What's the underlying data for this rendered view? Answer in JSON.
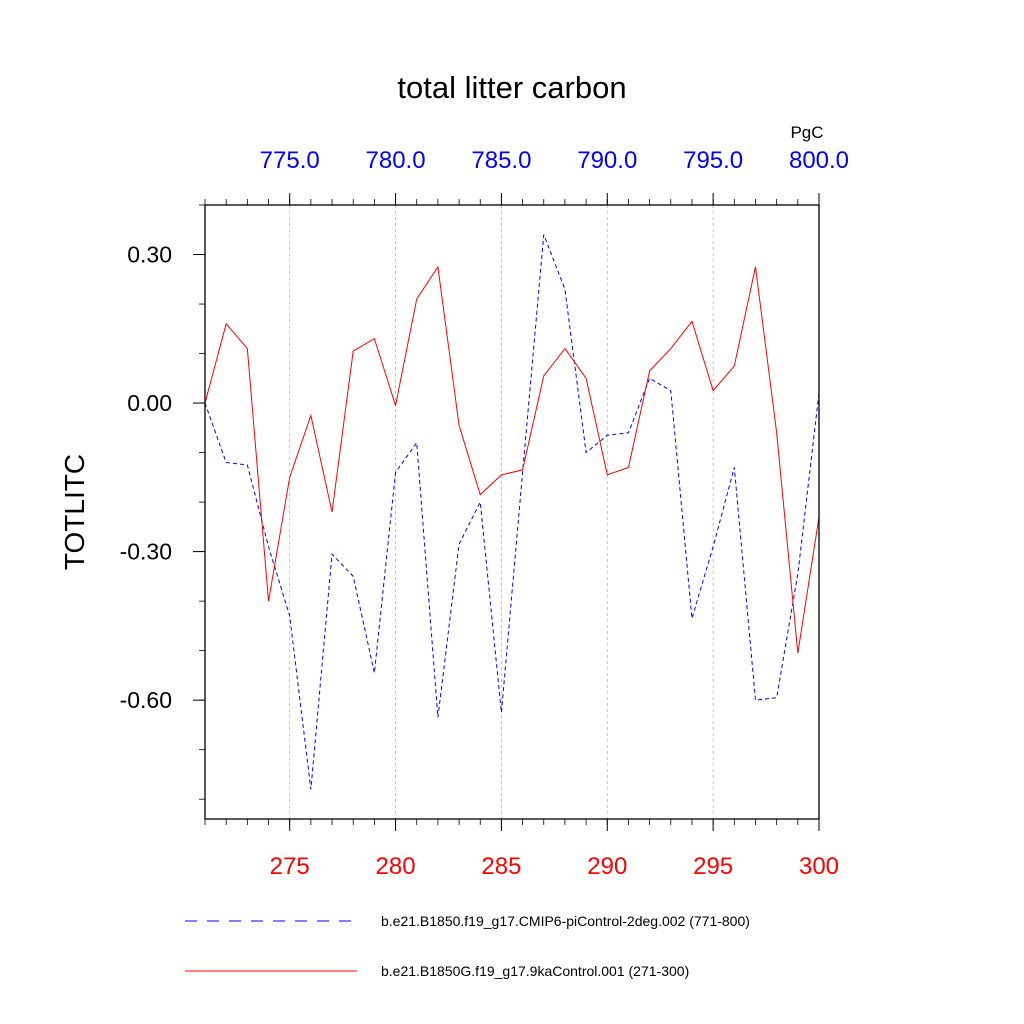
{
  "chart_data": {
    "type": "line",
    "title": "total litter carbon",
    "units": "PgC",
    "ylabel": "TOTLITC",
    "ylim": [
      -0.84,
      0.4
    ],
    "yticks": [
      {
        "value": 0.3,
        "label": "0.30"
      },
      {
        "value": 0.0,
        "label": "0.00"
      },
      {
        "value": -0.3,
        "label": "-0.30"
      },
      {
        "value": -0.6,
        "label": "-0.60"
      }
    ],
    "y_minor_step": 0.1,
    "xlim": [
      271,
      300
    ],
    "bottom_axis": {
      "color": "#ff0000",
      "ticks": [
        {
          "value": 275,
          "label": "275"
        },
        {
          "value": 280,
          "label": "280"
        },
        {
          "value": 285,
          "label": "285"
        },
        {
          "value": 290,
          "label": "290"
        },
        {
          "value": 295,
          "label": "295"
        },
        {
          "value": 300,
          "label": "300"
        }
      ]
    },
    "top_axis": {
      "color": "#0000ff",
      "ticks": [
        {
          "value": 775,
          "label": "775.0"
        },
        {
          "value": 780,
          "label": "780.0"
        },
        {
          "value": 785,
          "label": "785.0"
        },
        {
          "value": 790,
          "label": "790.0"
        },
        {
          "value": 795,
          "label": "795.0"
        },
        {
          "value": 800,
          "label": "800.0"
        }
      ]
    },
    "series": [
      {
        "name": "b.e21.B1850.f19_g17.CMIP6-piControl-2deg.002 (771-800)",
        "color": "#0000ff",
        "style": "dashed",
        "axis": "top",
        "x": [
          771,
          772,
          773,
          774,
          775,
          776,
          777,
          778,
          779,
          780,
          781,
          782,
          783,
          784,
          785,
          786,
          787,
          788,
          789,
          790,
          791,
          792,
          793,
          794,
          795,
          796,
          797,
          798,
          799,
          800
        ],
        "values": [
          0.0,
          -0.12,
          -0.125,
          -0.29,
          -0.43,
          -0.78,
          -0.305,
          -0.35,
          -0.545,
          -0.14,
          -0.08,
          -0.635,
          -0.285,
          -0.2,
          -0.625,
          -0.14,
          0.34,
          0.23,
          -0.1,
          -0.065,
          -0.06,
          0.05,
          0.025,
          -0.435,
          -0.29,
          -0.13,
          -0.6,
          -0.595,
          -0.345,
          0.02
        ]
      },
      {
        "name": "b.e21.B1850G.f19_g17.9kaControl.001 (271-300)",
        "color": "#ff0000",
        "style": "solid",
        "axis": "bottom",
        "x": [
          271,
          272,
          273,
          274,
          275,
          276,
          277,
          278,
          279,
          280,
          281,
          282,
          283,
          284,
          285,
          286,
          287,
          288,
          289,
          290,
          291,
          292,
          293,
          294,
          295,
          296,
          297,
          298,
          299,
          300
        ],
        "values": [
          0.0,
          0.16,
          0.11,
          -0.4,
          -0.15,
          -0.025,
          -0.22,
          0.105,
          0.13,
          -0.005,
          0.21,
          0.275,
          -0.045,
          -0.185,
          -0.145,
          -0.135,
          0.055,
          0.11,
          0.05,
          -0.145,
          -0.13,
          0.065,
          0.11,
          0.165,
          0.025,
          0.075,
          0.275,
          -0.06,
          -0.505,
          -0.23
        ]
      }
    ]
  }
}
